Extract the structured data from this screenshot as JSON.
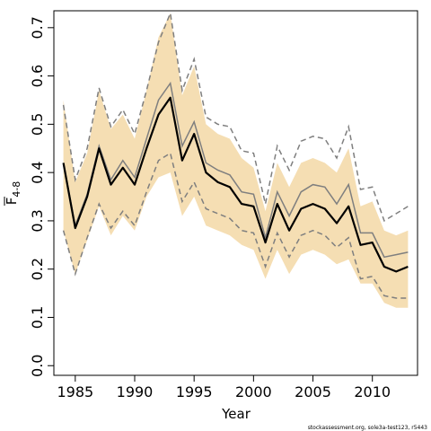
{
  "chart_data": {
    "type": "line",
    "xlabel": "Year",
    "ylabel_main": "F",
    "ylabel_sub": "4-8",
    "footnote": "stockassessment.org, sole3a-test123, r5443",
    "xlim": [
      1983.2,
      2013.8
    ],
    "ylim": [
      -0.02,
      0.735
    ],
    "xticks": [
      1985,
      1990,
      1995,
      2000,
      2005,
      2010
    ],
    "xtick_labels": [
      "1985",
      "1990",
      "1995",
      "2000",
      "2005",
      "2010"
    ],
    "yticks": [
      0.0,
      0.1,
      0.2,
      0.3,
      0.4,
      0.5,
      0.6,
      0.7
    ],
    "ytick_labels": [
      "0.0",
      "0.1",
      "0.2",
      "0.3",
      "0.4",
      "0.5",
      "0.6",
      "0.7"
    ],
    "colors": {
      "band": "#f5deb3",
      "estimate": "#000000",
      "reference": "#7f7f7f"
    },
    "x": [
      1984,
      1985,
      1986,
      1987,
      1988,
      1989,
      1990,
      1991,
      1992,
      1993,
      1994,
      1995,
      1996,
      1997,
      1998,
      1999,
      2000,
      2001,
      2002,
      2003,
      2004,
      2005,
      2006,
      2007,
      2008,
      2009,
      2010,
      2011,
      2012,
      2013
    ],
    "series": [
      {
        "role": "band_upper",
        "values": [
          0.55,
          0.38,
          0.44,
          0.57,
          0.49,
          0.52,
          0.47,
          0.57,
          0.68,
          0.73,
          0.56,
          0.62,
          0.5,
          0.48,
          0.47,
          0.43,
          0.41,
          0.32,
          0.42,
          0.37,
          0.42,
          0.43,
          0.42,
          0.4,
          0.45,
          0.33,
          0.34,
          0.28,
          0.27,
          0.28
        ]
      },
      {
        "role": "band_lower",
        "values": [
          0.28,
          0.19,
          0.26,
          0.33,
          0.27,
          0.31,
          0.28,
          0.35,
          0.39,
          0.4,
          0.31,
          0.35,
          0.29,
          0.28,
          0.27,
          0.25,
          0.24,
          0.18,
          0.24,
          0.19,
          0.23,
          0.24,
          0.23,
          0.21,
          0.22,
          0.17,
          0.17,
          0.13,
          0.12,
          0.12
        ]
      },
      {
        "role": "estimate",
        "values": [
          0.42,
          0.285,
          0.35,
          0.45,
          0.375,
          0.41,
          0.375,
          0.45,
          0.52,
          0.555,
          0.425,
          0.48,
          0.4,
          0.38,
          0.37,
          0.335,
          0.33,
          0.255,
          0.335,
          0.28,
          0.325,
          0.335,
          0.325,
          0.295,
          0.33,
          0.25,
          0.255,
          0.205,
          0.195,
          0.205
        ]
      },
      {
        "role": "reference",
        "values": [
          0.42,
          0.29,
          0.355,
          0.455,
          0.385,
          0.425,
          0.39,
          0.47,
          0.55,
          0.585,
          0.455,
          0.505,
          0.42,
          0.405,
          0.395,
          0.36,
          0.355,
          0.265,
          0.36,
          0.31,
          0.36,
          0.375,
          0.37,
          0.335,
          0.375,
          0.275,
          0.275,
          0.225,
          0.23,
          0.235
        ]
      },
      {
        "role": "reference_upper",
        "values": [
          0.54,
          0.385,
          0.45,
          0.575,
          0.495,
          0.53,
          0.48,
          0.57,
          0.67,
          0.73,
          0.57,
          0.635,
          0.515,
          0.5,
          0.495,
          0.445,
          0.44,
          0.335,
          0.455,
          0.405,
          0.465,
          0.475,
          0.47,
          0.43,
          0.495,
          0.365,
          0.37,
          0.3,
          0.315,
          0.33
        ]
      },
      {
        "role": "reference_lower",
        "values": [
          0.28,
          0.19,
          0.265,
          0.335,
          0.285,
          0.32,
          0.29,
          0.36,
          0.425,
          0.44,
          0.34,
          0.38,
          0.325,
          0.315,
          0.305,
          0.28,
          0.275,
          0.205,
          0.275,
          0.225,
          0.27,
          0.28,
          0.27,
          0.245,
          0.265,
          0.18,
          0.185,
          0.145,
          0.14,
          0.14
        ]
      }
    ]
  }
}
